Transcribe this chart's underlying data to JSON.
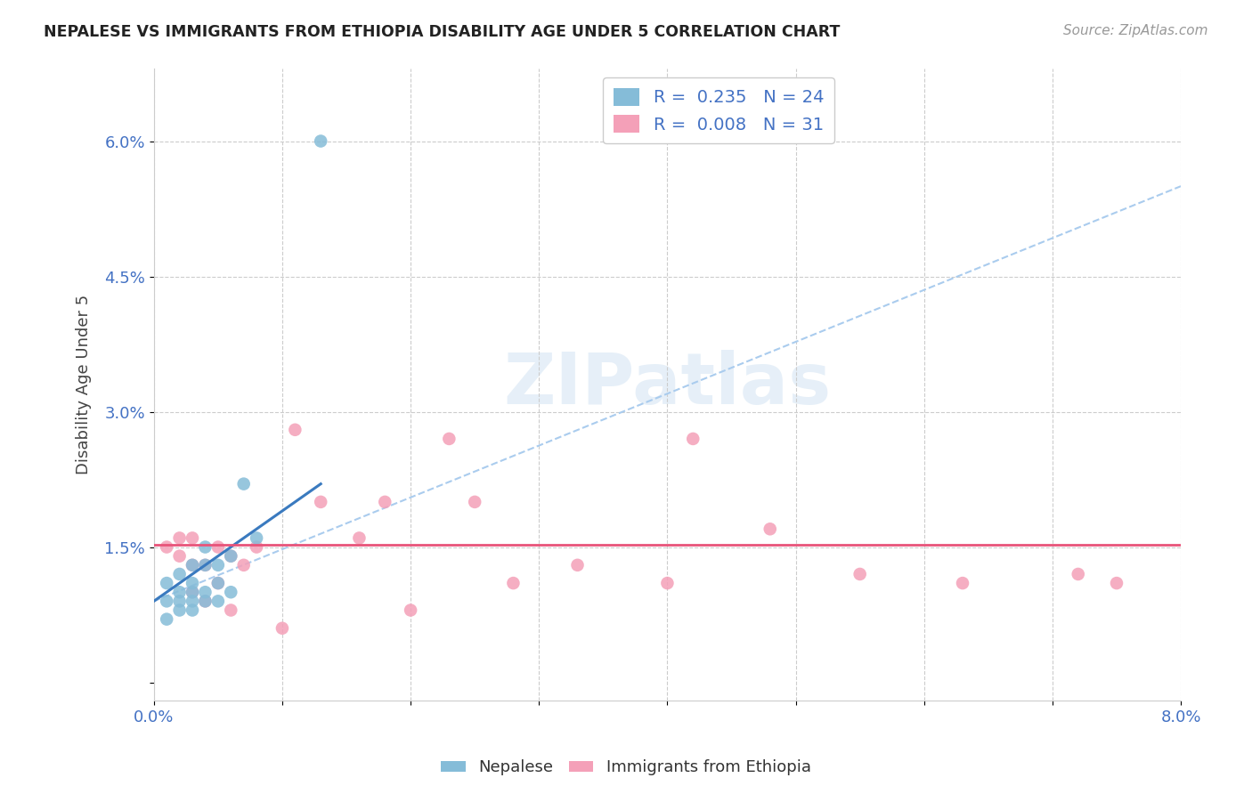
{
  "title": "NEPALESE VS IMMIGRANTS FROM ETHIOPIA DISABILITY AGE UNDER 5 CORRELATION CHART",
  "source": "Source: ZipAtlas.com",
  "ylabel": "Disability Age Under 5",
  "xlim": [
    0.0,
    0.08
  ],
  "ylim": [
    -0.002,
    0.068
  ],
  "xticks": [
    0.0,
    0.01,
    0.02,
    0.03,
    0.04,
    0.05,
    0.06,
    0.07,
    0.08
  ],
  "yticks": [
    0.0,
    0.015,
    0.03,
    0.045,
    0.06
  ],
  "ytick_labels": [
    "",
    "1.5%",
    "3.0%",
    "4.5%",
    "6.0%"
  ],
  "xtick_labels": [
    "0.0%",
    "",
    "",
    "",
    "",
    "",
    "",
    "",
    "8.0%"
  ],
  "nepalese_color": "#85bcd8",
  "ethiopia_color": "#f4a0b8",
  "nepalese_line_color": "#3a7abf",
  "ethiopia_line_color": "#e8547a",
  "dashed_line_color": "#aaccee",
  "background_color": "#ffffff",
  "watermark": "ZIPatlas",
  "nepalese_R": 0.235,
  "ethiopia_R": 0.008,
  "nepalese_N": 24,
  "ethiopia_N": 31,
  "nepalese_x": [
    0.001,
    0.001,
    0.001,
    0.002,
    0.002,
    0.002,
    0.002,
    0.003,
    0.003,
    0.003,
    0.003,
    0.003,
    0.004,
    0.004,
    0.004,
    0.004,
    0.005,
    0.005,
    0.005,
    0.006,
    0.006,
    0.007,
    0.008,
    0.013
  ],
  "nepalese_y": [
    0.007,
    0.009,
    0.011,
    0.008,
    0.009,
    0.01,
    0.012,
    0.008,
    0.009,
    0.01,
    0.011,
    0.013,
    0.009,
    0.01,
    0.013,
    0.015,
    0.009,
    0.011,
    0.013,
    0.01,
    0.014,
    0.022,
    0.016,
    0.06
  ],
  "ethiopia_x": [
    0.001,
    0.002,
    0.002,
    0.003,
    0.003,
    0.003,
    0.004,
    0.004,
    0.005,
    0.005,
    0.006,
    0.006,
    0.007,
    0.008,
    0.01,
    0.011,
    0.013,
    0.016,
    0.018,
    0.02,
    0.023,
    0.025,
    0.028,
    0.033,
    0.04,
    0.042,
    0.048,
    0.055,
    0.063,
    0.072,
    0.075
  ],
  "ethiopia_y": [
    0.015,
    0.014,
    0.016,
    0.01,
    0.013,
    0.016,
    0.009,
    0.013,
    0.011,
    0.015,
    0.008,
    0.014,
    0.013,
    0.015,
    0.006,
    0.028,
    0.02,
    0.016,
    0.02,
    0.008,
    0.027,
    0.02,
    0.011,
    0.013,
    0.011,
    0.027,
    0.017,
    0.012,
    0.011,
    0.012,
    0.011
  ],
  "nep_line_x0": 0.0,
  "nep_line_y0": 0.009,
  "nep_line_x1": 0.013,
  "nep_line_y1": 0.022,
  "eth_line_y": 0.0153,
  "dash_line_x0": 0.0,
  "dash_line_y0": 0.009,
  "dash_line_x1": 0.08,
  "dash_line_y1": 0.055
}
